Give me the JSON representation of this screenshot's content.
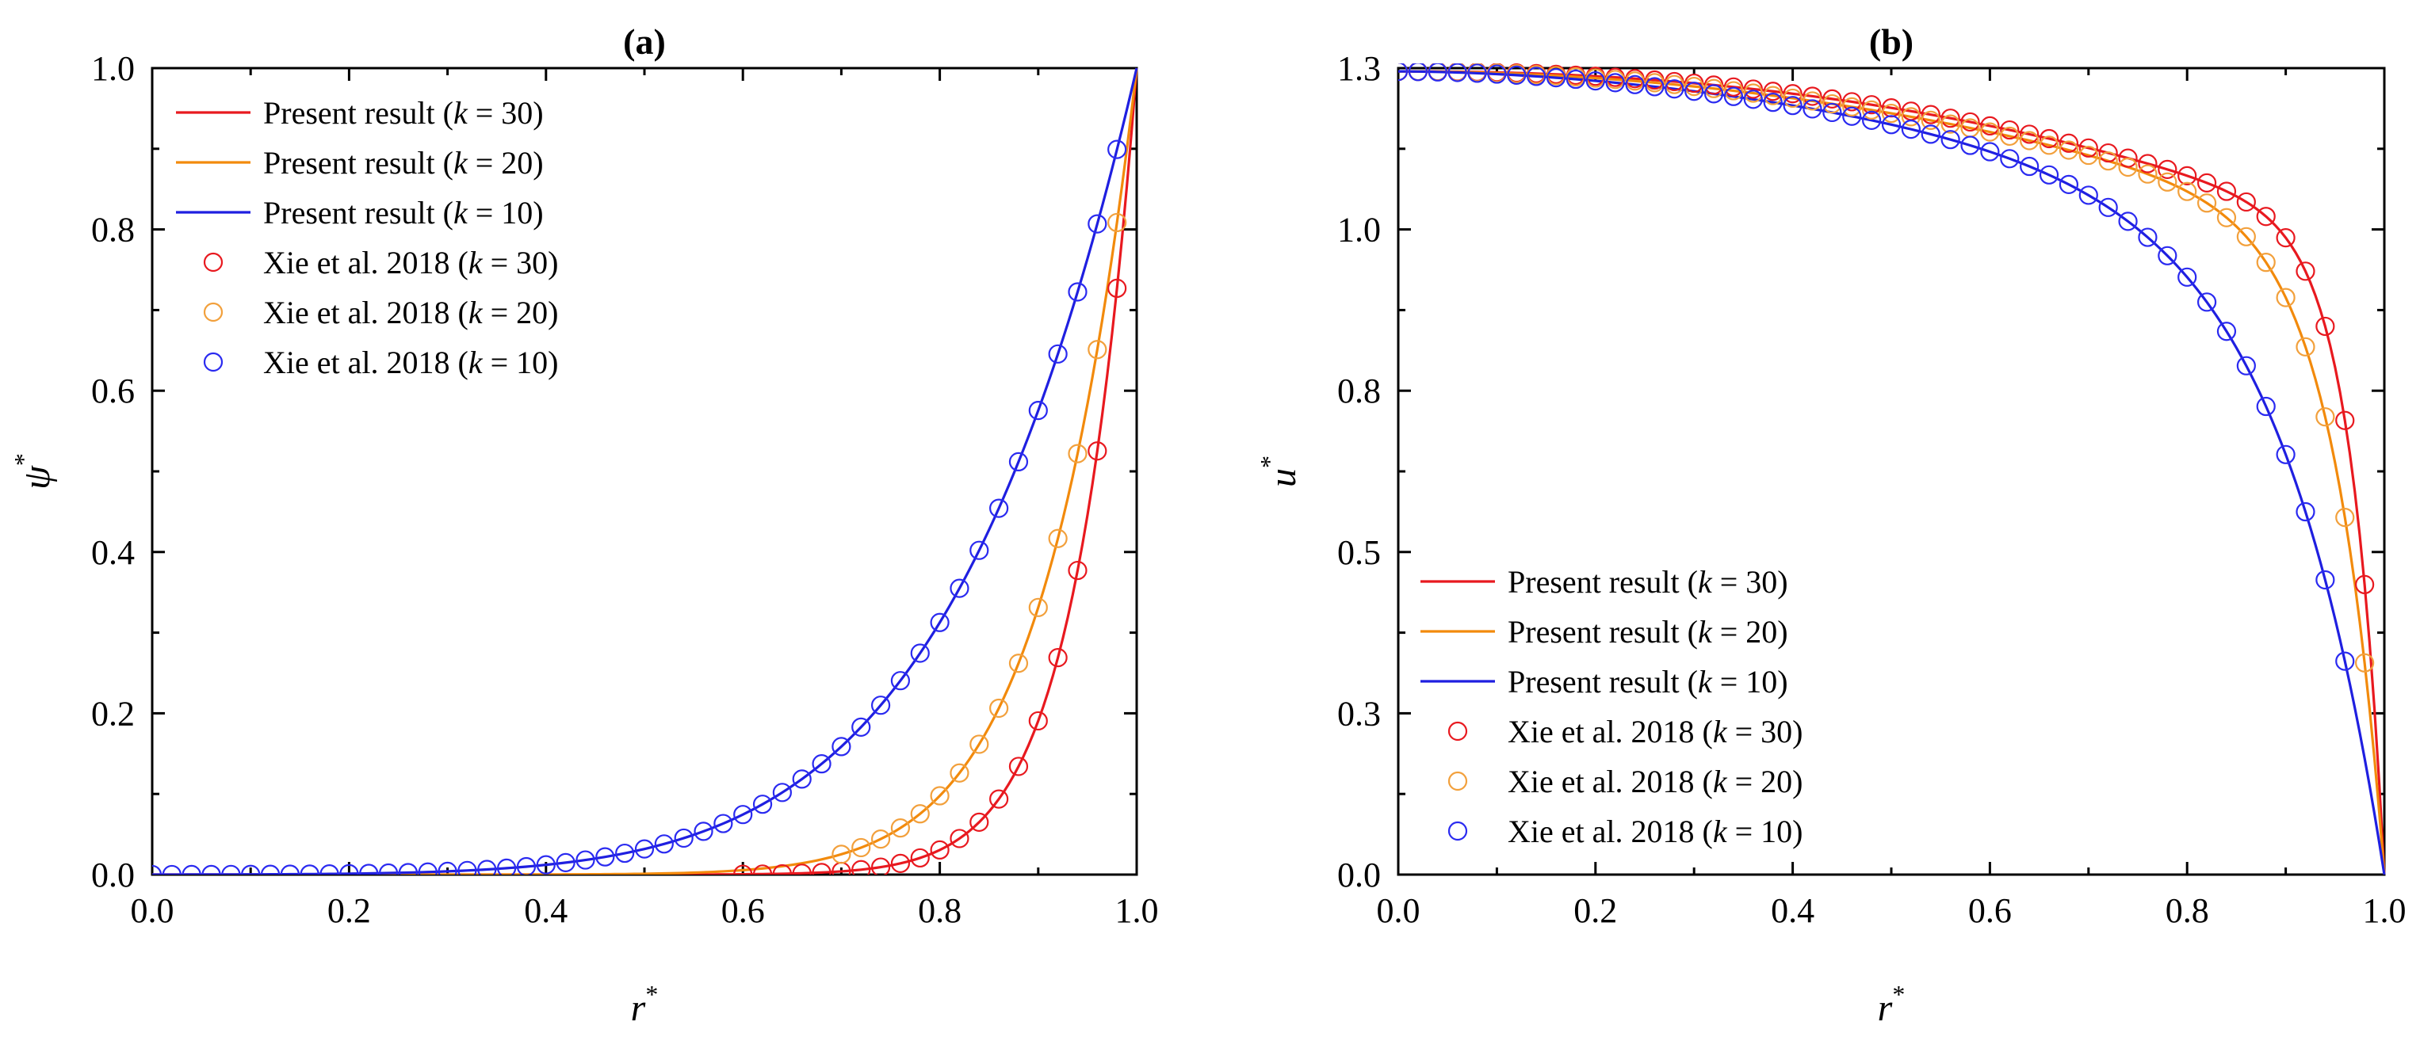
{
  "chart_data": [
    {
      "type": "line",
      "panel": "(a)",
      "title": "(a)",
      "xlabel": "r",
      "ylabel": "ψ",
      "label_superscript": "*",
      "xlim": [
        0.0,
        1.0
      ],
      "ylim": [
        0.0,
        1.0
      ],
      "xticks": [
        0.0,
        0.2,
        0.4,
        0.6,
        0.8,
        1.0
      ],
      "xtick_labels": [
        "0.0",
        "0.2",
        "0.4",
        "0.6",
        "0.8",
        "1.0"
      ],
      "yticks": [
        0.0,
        0.2,
        0.4,
        0.6,
        0.8,
        1.0
      ],
      "ytick_labels": [
        "0.0",
        "0.2",
        "0.4",
        "0.6",
        "0.8",
        "1.0"
      ],
      "legend_position": "top-left",
      "legend": [
        {
          "label": "Present result (",
          "k": "k",
          "value": " = 30)",
          "style": "line",
          "color": "#e8191f"
        },
        {
          "label": "Present result (",
          "k": "k",
          "value": " = 20)",
          "style": "line",
          "color": "#f28a0c"
        },
        {
          "label": "Present result (",
          "k": "k",
          "value": " = 10)",
          "style": "line",
          "color": "#1f1fe0"
        },
        {
          "label": "Xie et al. 2018 (",
          "k": "k",
          "value": " = 30)",
          "style": "marker",
          "color": "#e8191f"
        },
        {
          "label": "Xie et al. 2018 (",
          "k": "k",
          "value": " = 20)",
          "style": "marker",
          "color": "#f2a03c"
        },
        {
          "label": "Xie et al. 2018 (",
          "k": "k",
          "value": " = 10)",
          "style": "marker",
          "color": "#2a2af0"
        }
      ],
      "series": [
        {
          "name": "Present result (k = 30)",
          "kind": "line",
          "color": "#e8191f",
          "model": "psi",
          "k": 30,
          "n": 200
        },
        {
          "name": "Present result (k = 20)",
          "kind": "line",
          "color": "#f28a0c",
          "model": "psi",
          "k": 20,
          "n": 200
        },
        {
          "name": "Present result (k = 10)",
          "kind": "line",
          "color": "#1f1fe0",
          "model": "psi",
          "k": 10,
          "n": 200
        },
        {
          "name": "Xie et al. 2018 (k = 30)",
          "kind": "marker",
          "color": "#e8191f",
          "model": "psi",
          "k": 30,
          "x_start": 0.6,
          "x_end": 0.98,
          "x_step": 0.02
        },
        {
          "name": "Xie et al. 2018 (k = 20)",
          "kind": "marker",
          "color": "#f2a03c",
          "model": "psi",
          "k": 20,
          "x_start": 0.7,
          "x_end": 0.98,
          "x_step": 0.02
        },
        {
          "name": "Xie et al. 2018 (k = 10)",
          "kind": "marker",
          "color": "#2a2af0",
          "model": "psi",
          "k": 10,
          "x_start": 0.0,
          "x_end": 0.98,
          "x_step": 0.02
        }
      ]
    },
    {
      "type": "line",
      "panel": "(b)",
      "title": "(b)",
      "xlabel": "r",
      "ylabel": "u",
      "label_superscript": "*",
      "xlim": [
        0.0,
        1.0
      ],
      "ylim": [
        0.0,
        1.25
      ],
      "xticks": [
        0.0,
        0.2,
        0.4,
        0.6,
        0.8,
        1.0
      ],
      "xtick_labels": [
        "0.0",
        "0.2",
        "0.4",
        "0.6",
        "0.8",
        "1.0"
      ],
      "yticks": [
        0.0,
        0.25,
        0.5,
        0.75,
        1.0,
        1.25
      ],
      "ytick_labels": [
        "0.0",
        "0.3",
        "0.5",
        "0.8",
        "1.0",
        "1.3"
      ],
      "legend_position": "bottom-left",
      "legend": [
        {
          "label": "Present result (",
          "k": "k",
          "value": " = 30)",
          "style": "line",
          "color": "#e8191f"
        },
        {
          "label": "Present result (",
          "k": "k",
          "value": " = 20)",
          "style": "line",
          "color": "#f28a0c"
        },
        {
          "label": "Present result (",
          "k": "k",
          "value": " = 10)",
          "style": "line",
          "color": "#1f1fe0"
        },
        {
          "label": "Xie et al. 2018 (",
          "k": "k",
          "value": " = 30)",
          "style": "marker",
          "color": "#e8191f"
        },
        {
          "label": "Xie et al. 2018 (",
          "k": "k",
          "value": " = 20)",
          "style": "marker",
          "color": "#f2a03c"
        },
        {
          "label": "Xie et al. 2018 (",
          "k": "k",
          "value": " = 10)",
          "style": "marker",
          "color": "#2a2af0"
        }
      ],
      "series": [
        {
          "name": "Present result (k = 30)",
          "kind": "line",
          "color": "#e8191f",
          "model": "u",
          "k": 30,
          "n": 200
        },
        {
          "name": "Present result (k = 20)",
          "kind": "line",
          "color": "#f28a0c",
          "model": "u",
          "k": 20,
          "n": 200
        },
        {
          "name": "Present result (k = 10)",
          "kind": "line",
          "color": "#1f1fe0",
          "model": "u",
          "k": 10,
          "n": 200
        },
        {
          "name": "Xie et al. 2018 (k = 30)",
          "kind": "marker",
          "color": "#e8191f",
          "model": "u",
          "k": 30,
          "x_start": 0.0,
          "x_end": 0.98,
          "x_step": 0.02
        },
        {
          "name": "Xie et al. 2018 (k = 20)",
          "kind": "marker",
          "color": "#f2a03c",
          "model": "u",
          "k": 20,
          "x_start": 0.0,
          "x_end": 0.98,
          "x_step": 0.02
        },
        {
          "name": "Xie et al. 2018 (k = 10)",
          "kind": "marker",
          "color": "#2a2af0",
          "model": "u",
          "k": 10,
          "x_start": 0.0,
          "x_end": 0.96,
          "x_step": 0.02
        }
      ],
      "u_model": {
        "u0": 1.245,
        "a": 0.26,
        "p": [
          2.2,
          2.0,
          1.8
        ]
      }
    }
  ]
}
